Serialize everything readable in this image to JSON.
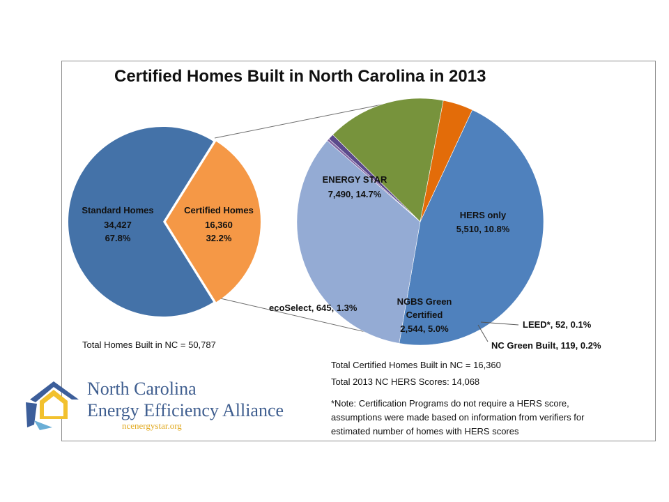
{
  "chart_data": {
    "type": "pie",
    "title": "Certified Homes Built in North Carolina in 2013",
    "main_pie": {
      "slices": [
        {
          "label": "Standard Homes",
          "value": 34427,
          "value_text": "34,427",
          "percent": "67.8%",
          "color": "#4472a8"
        },
        {
          "label": "Certified Homes",
          "value": 16360,
          "value_text": "16,360",
          "percent": "32.2%",
          "color": "#f59846"
        }
      ]
    },
    "breakdown_pie": {
      "slices": [
        {
          "label": "ENERGY STAR",
          "value": 7490,
          "text": "7,490, 14.7%",
          "color": "#4f81bd"
        },
        {
          "label": "HERS only",
          "value": 5510,
          "text": "5,510, 10.8%",
          "color": "#94abd4"
        },
        {
          "label": "LEED*",
          "value": 52,
          "text": "LEED*, 52, 0.1%",
          "color": "#8064a2"
        },
        {
          "label": "NC Green Built",
          "value": 119,
          "text": "NC Green Built, 119, 0.2%",
          "color": "#5b4a8c"
        },
        {
          "label": "NGBS Green Certified",
          "value": 2544,
          "text": "2,544, 5.0%",
          "color": "#77933c"
        },
        {
          "label": "ecoSelect",
          "value": 645,
          "text": "ecoSelect, 645, 1.3%",
          "color": "#e36c09"
        }
      ]
    }
  },
  "labels": {
    "standard_name": "Standard Homes",
    "standard_value": "34,427",
    "standard_pct": "67.8%",
    "certified_name": "Certified Homes",
    "certified_value": "16,360",
    "certified_pct": "32.2%",
    "energy_star_name": "ENERGY STAR",
    "energy_star_value": "7,490, 14.7%",
    "hers_name": "HERS only",
    "hers_value": "5,510, 10.8%",
    "ngbs_name_1": "NGBS Green",
    "ngbs_name_2": "Certified",
    "ngbs_value": "2,544, 5.0%",
    "ecoselect": "ecoSelect, 645, 1.3%",
    "leed": "LEED*, 52, 0.1%",
    "nc_green_built": "NC Green Built, 119, 0.2%"
  },
  "notes": {
    "total_homes": "Total Homes  Built in NC = 50,787",
    "total_certified": "Total Certified Homes Built in NC = 16,360",
    "total_hers": "Total 2013 NC HERS Scores:  14,068",
    "footnote_1": "*Note: Certification Programs do not require a HERS score,",
    "footnote_2": "assumptions were made based on information from verifiers for",
    "footnote_3": "estimated  number of homes with HERS scores"
  },
  "logo": {
    "line1": "North Carolina",
    "line2": "Energy Efficiency Alliance",
    "url": "ncenergystar.org"
  }
}
